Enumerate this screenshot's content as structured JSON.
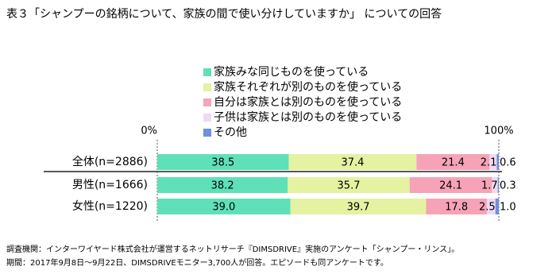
{
  "chart_data": {
    "type": "stacked-bar-horizontal",
    "title": "表３「シャンプーの銘柄について、家族の間で使い分けしていますか」 についての回答",
    "categories": [
      "全体(n=2886)",
      "男性(n=1666)",
      "女性(n=1220)"
    ],
    "series": [
      {
        "name": "家族みな同じものを使っている",
        "color": "#5fe0b8",
        "values": [
          38.5,
          38.2,
          39.0
        ],
        "value_labels": [
          "38.5",
          "38.2",
          "39.0"
        ]
      },
      {
        "name": "家族それぞれが別のものを使っている",
        "color": "#e4f2a2",
        "values": [
          37.4,
          35.7,
          39.7
        ],
        "value_labels": [
          "37.4",
          "35.7",
          "39.7"
        ]
      },
      {
        "name": "自分は家族とは別のものを使っている",
        "color": "#f6a3b8",
        "values": [
          21.4,
          24.1,
          17.8
        ],
        "value_labels": [
          "21.4",
          "24.1",
          "17.8"
        ]
      },
      {
        "name": "子供は家族とは別のものを使っている",
        "color": "#eedaf2",
        "values": [
          2.1,
          1.7,
          2.5
        ],
        "value_labels": [
          "2.1",
          "1.7",
          "2.5"
        ]
      },
      {
        "name": "その他",
        "color": "#6f8fdc",
        "values": [
          0.6,
          0.3,
          1.0
        ],
        "value_labels": [
          "0.6",
          "0.3",
          "1.0"
        ]
      }
    ],
    "xlim": [
      0,
      100
    ],
    "xticks": [
      {
        "value": 0,
        "label": "0%"
      },
      {
        "value": 100,
        "label": "100%"
      }
    ],
    "notes": [
      "調査機関：インターワイヤード株式会社が運営するネットリサーチ『DIMSDRIVE』実施のアンケート「シャンプー・リンス」。",
      "期間：2017年9月8日～9月22日、DIMSDRIVEモニター3,700人が回答。エピソードも同アンケートです。"
    ]
  }
}
